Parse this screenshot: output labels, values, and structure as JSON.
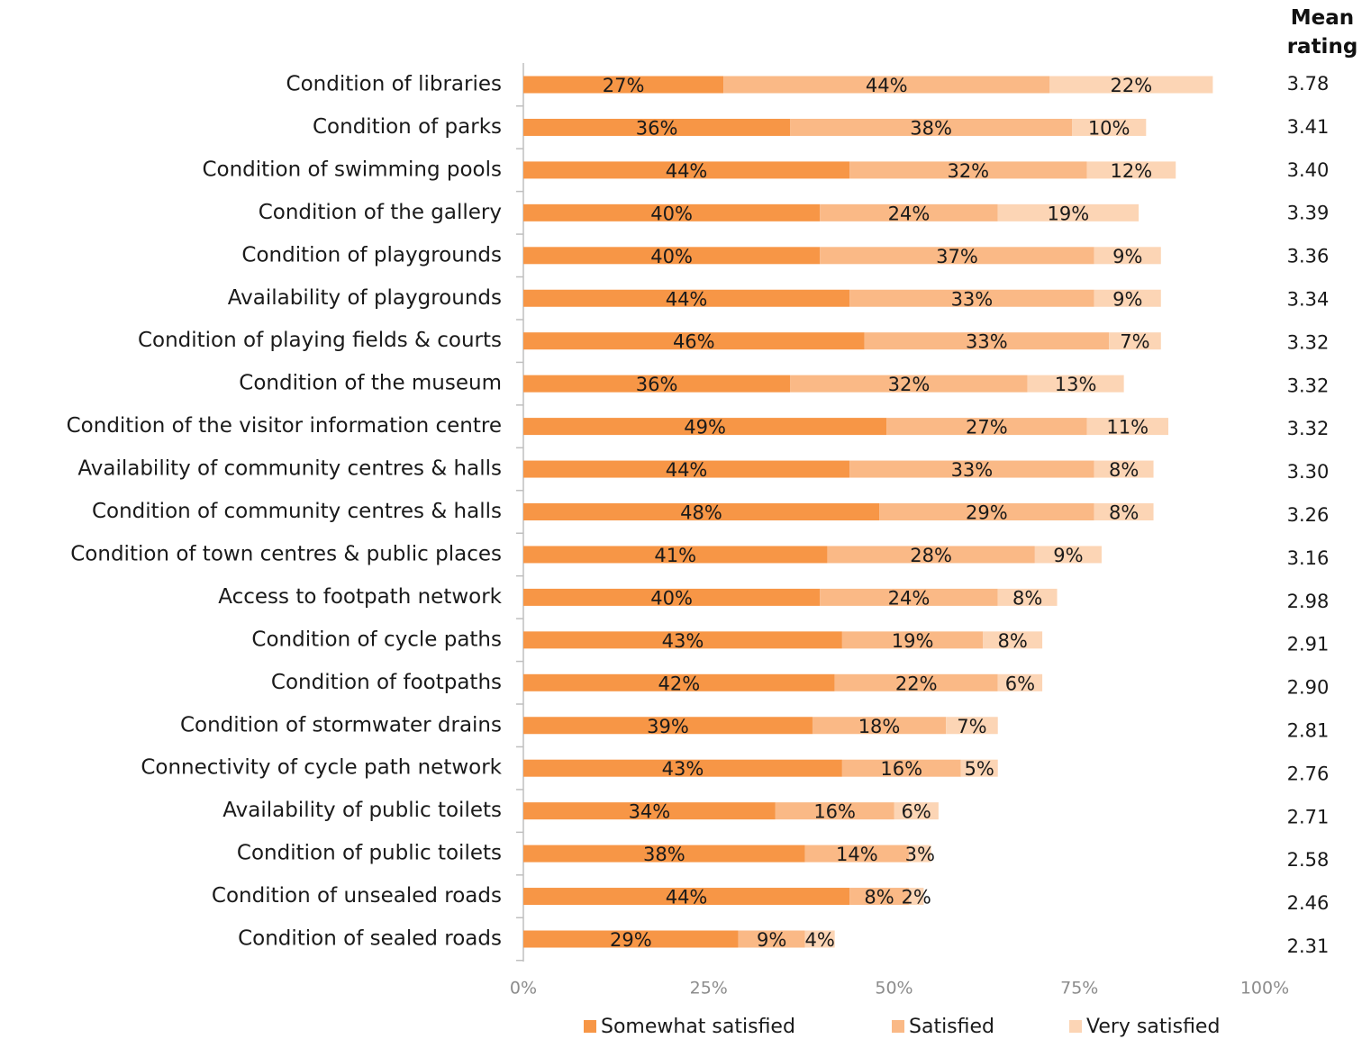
{
  "chart_data": {
    "type": "stacked_barh",
    "categories": [
      "Condition of libraries",
      "Condition of parks",
      "Condition of swimming pools",
      "Condition of the gallery",
      "Condition of playgrounds",
      "Availability of playgrounds",
      "Condition of playing fields & courts",
      "Condition of the museum",
      "Condition of the visitor information centre",
      "Availability of community centres & halls",
      "Condition of community centres & halls",
      "Condition of town centres & public places",
      "Access to footpath network",
      "Condition of cycle paths",
      "Condition of footpaths",
      "Condition of stormwater drains",
      "Connectivity of cycle path network",
      "Availability of public toilets",
      "Condition of public toilets",
      "Condition of unsealed roads",
      "Condition of sealed roads"
    ],
    "series": [
      {
        "name": "Somewhat satisfied",
        "color": "#f79646",
        "values": [
          27,
          36,
          44,
          40,
          40,
          44,
          46,
          36,
          49,
          44,
          48,
          41,
          40,
          43,
          42,
          39,
          43,
          34,
          38,
          44,
          29
        ],
        "value_labels": [
          "27%",
          "36%",
          "44%",
          "40%",
          "40%",
          "44%",
          "46%",
          "36%",
          "49%",
          "44%",
          "48%",
          "41%",
          "40%",
          "43%",
          "42%",
          "39%",
          "43%",
          "34%",
          "38%",
          "44%",
          "29%"
        ]
      },
      {
        "name": "Satisfied",
        "color": "#fab986",
        "values": [
          44,
          38,
          32,
          24,
          37,
          33,
          33,
          32,
          27,
          33,
          29,
          28,
          24,
          19,
          22,
          18,
          16,
          16,
          14,
          8,
          9
        ],
        "value_labels": [
          "44%",
          "38%",
          "32%",
          "24%",
          "37%",
          "33%",
          "33%",
          "32%",
          "27%",
          "33%",
          "29%",
          "28%",
          "24%",
          "19%",
          "22%",
          "18%",
          "16%",
          "16%",
          "14%",
          "8%",
          "9%"
        ]
      },
      {
        "name": "Very satisfied",
        "color": "#fcd5b5",
        "values": [
          22,
          10,
          12,
          19,
          9,
          9,
          7,
          13,
          11,
          8,
          8,
          9,
          8,
          8,
          6,
          7,
          5,
          6,
          3,
          2,
          4
        ],
        "value_labels": [
          "22%",
          "10%",
          "12%",
          "19%",
          "9%",
          "9%",
          "7%",
          "13%",
          "11%",
          "8%",
          "8%",
          "9%",
          "8%",
          "8%",
          "6%",
          "7%",
          "5%",
          "6%",
          "3%",
          "2%",
          "4%"
        ]
      }
    ],
    "xlim": [
      0,
      100
    ],
    "xticks": [
      {
        "value": 0,
        "label": "0%"
      },
      {
        "value": 25,
        "label": "25%"
      },
      {
        "value": 50,
        "label": "50%"
      },
      {
        "value": 75,
        "label": "75%"
      },
      {
        "value": 100,
        "label": "100%"
      }
    ],
    "legend": "bottom",
    "mean_rating_title": "Mean rating",
    "mean_ratings": [
      "3.78",
      "3.41",
      "3.40",
      "3.39",
      "3.36",
      "3.34",
      "3.32",
      "3.32",
      "3.32",
      "3.30",
      "3.26",
      "3.16",
      "2.98",
      "2.91",
      "2.90",
      "2.81",
      "2.76",
      "2.71",
      "2.58",
      "2.46",
      "2.31"
    ]
  }
}
